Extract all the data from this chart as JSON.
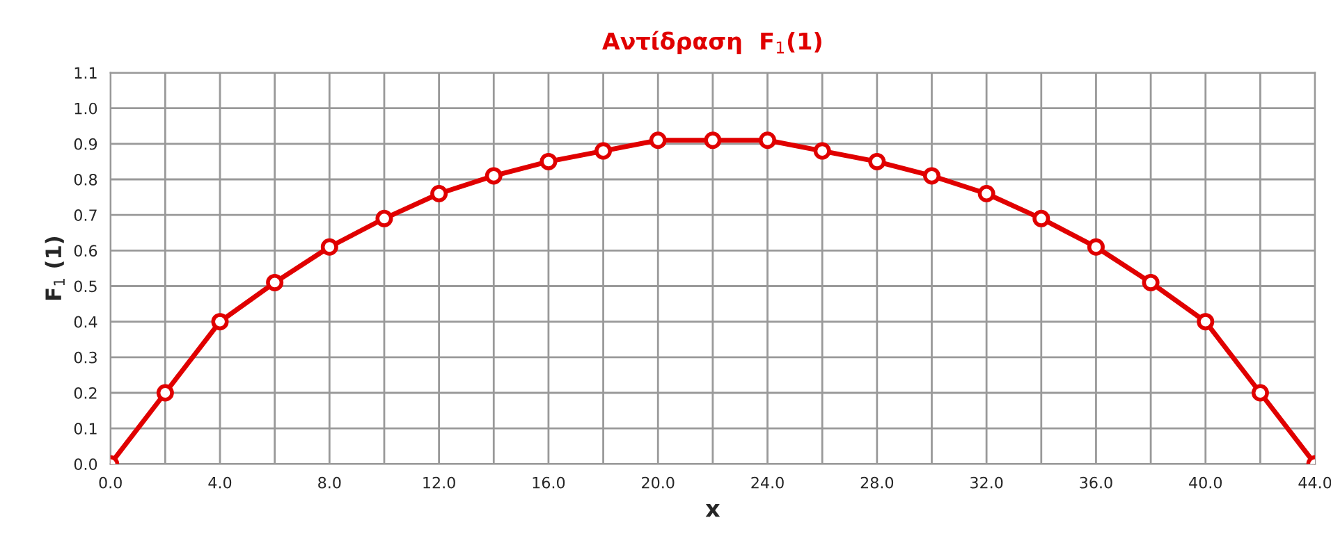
{
  "chart_data": {
    "type": "line",
    "title": "Αντίδραση  F$_{1}$(1)",
    "xlabel": "x",
    "ylabel": "F$_{1}$ (1)",
    "x": [
      0,
      2,
      4,
      6,
      8,
      10,
      12,
      14,
      16,
      18,
      20,
      22,
      24,
      26,
      28,
      30,
      32,
      34,
      36,
      38,
      40,
      42,
      44
    ],
    "series": [
      {
        "color": "#e00000",
        "values": [
          0,
          0.2,
          0.4,
          0.51,
          0.61,
          0.69,
          0.76,
          0.81,
          0.85,
          0.88,
          0.91,
          0.91,
          0.91,
          0.88,
          0.85,
          0.81,
          0.76,
          0.69,
          0.61,
          0.51,
          0.4,
          0.2,
          0
        ]
      }
    ],
    "xlim": [
      0,
      44
    ],
    "ylim": [
      0,
      1.1
    ],
    "xticks": [
      {
        "value": 0,
        "label": "0.0"
      },
      {
        "value": 2,
        "label": null
      },
      {
        "value": 4,
        "label": "4.0"
      },
      {
        "value": 6,
        "label": null
      },
      {
        "value": 8,
        "label": "8.0"
      },
      {
        "value": 10,
        "label": null
      },
      {
        "value": 12,
        "label": "12.0"
      },
      {
        "value": 14,
        "label": null
      },
      {
        "value": 16,
        "label": "16.0"
      },
      {
        "value": 18,
        "label": null
      },
      {
        "value": 20,
        "label": "20.0"
      },
      {
        "value": 22,
        "label": null
      },
      {
        "value": 24,
        "label": "24.0"
      },
      {
        "value": 26,
        "label": null
      },
      {
        "value": 28,
        "label": "28.0"
      },
      {
        "value": 30,
        "label": null
      },
      {
        "value": 32,
        "label": "32.0"
      },
      {
        "value": 34,
        "label": null
      },
      {
        "value": 36,
        "label": "36.0"
      },
      {
        "value": 38,
        "label": null
      },
      {
        "value": 40,
        "label": "40.0"
      },
      {
        "value": 42,
        "label": null
      },
      {
        "value": 44,
        "label": "44.0"
      }
    ],
    "yticks": [
      {
        "value": 0,
        "label": "0.0"
      },
      0.1,
      0.2,
      0.3,
      0.4,
      0.5,
      0.6,
      0.7,
      0.8,
      0.9,
      {
        "value": 1.0,
        "label": "1.0"
      },
      1.1
    ],
    "grid": true,
    "marker": "circle",
    "line_style": "solid",
    "legend": false
  }
}
